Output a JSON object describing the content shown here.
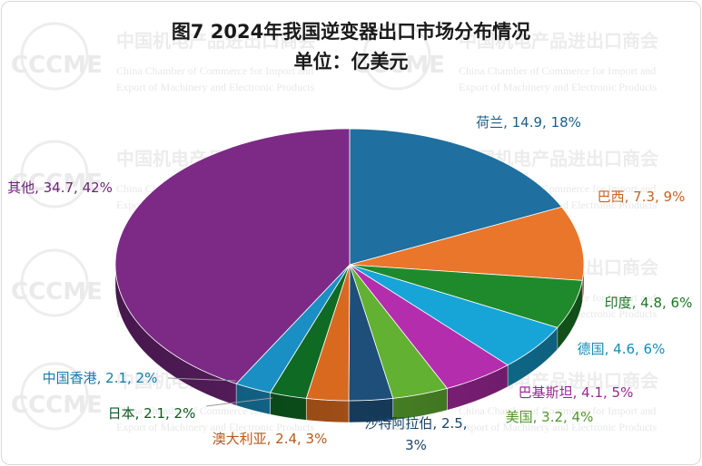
{
  "chart_data": {
    "type": "pie",
    "title": "图7  2024年我国逆变器出口市场分布情况",
    "subtitle": "单位：亿美元",
    "slices": [
      {
        "label": "荷兰",
        "value": 14.9,
        "percent": 18,
        "value_text": "14.9",
        "percent_text": "18%",
        "color": "#1f6fa0"
      },
      {
        "label": "巴西",
        "value": 7.3,
        "percent": 9,
        "value_text": "7.3",
        "percent_text": "9%",
        "color": "#e9762b"
      },
      {
        "label": "印度",
        "value": 4.8,
        "percent": 6,
        "value_text": "4.8",
        "percent_text": "6%",
        "color": "#1f8a2c"
      },
      {
        "label": "德国",
        "value": 4.6,
        "percent": 6,
        "value_text": "4.6",
        "percent_text": "6%",
        "color": "#17a5d8"
      },
      {
        "label": "巴基斯坦",
        "value": 4.1,
        "percent": 5,
        "value_text": "4.1",
        "percent_text": "5%",
        "color": "#b42dad"
      },
      {
        "label": "美国",
        "value": 3.2,
        "percent": 4,
        "value_text": "3.2",
        "percent_text": "4%",
        "color": "#62b132"
      },
      {
        "label": "沙特阿拉伯",
        "value": 2.5,
        "percent": 3,
        "value_text": "2.5",
        "percent_text": "3%",
        "color": "#1d4f7a"
      },
      {
        "label": "澳大利亚",
        "value": 2.4,
        "percent": 3,
        "value_text": "2.4",
        "percent_text": "3%",
        "color": "#d9691f"
      },
      {
        "label": "日本",
        "value": 2.1,
        "percent": 2,
        "value_text": "2.1",
        "percent_text": "2%",
        "color": "#0f6a24"
      },
      {
        "label": "中国香港",
        "value": 2.1,
        "percent": 2,
        "value_text": "2.1",
        "percent_text": "2%",
        "color": "#1a8fc4"
      },
      {
        "label": "其他",
        "value": 34.7,
        "percent": 42,
        "value_text": "34.7",
        "percent_text": "42%",
        "color": "#7c2a86"
      }
    ]
  },
  "watermark": {
    "logo_text": "CCCME",
    "cn_name": "中国机电产品进出口商会",
    "en_line1": "China Chamber of Commerce for Import and",
    "en_line2": "Export of Machinery and Electronic Products"
  }
}
